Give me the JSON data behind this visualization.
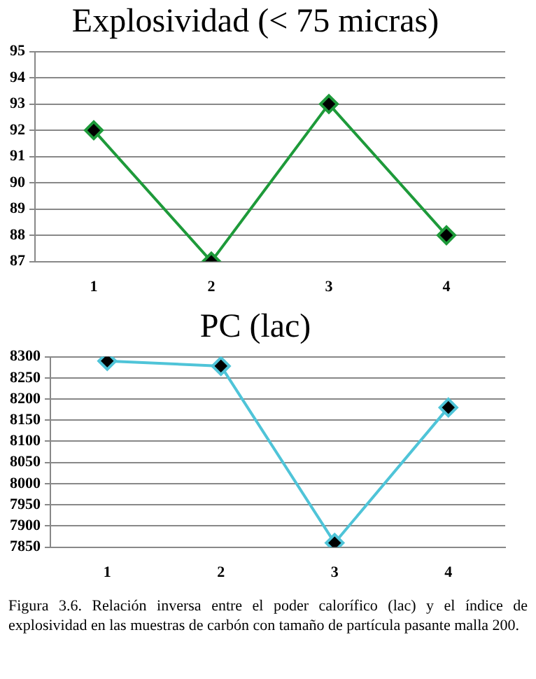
{
  "chart_data": [
    {
      "type": "line",
      "title": "Explosividad (< 75 micras)",
      "categories": [
        "1",
        "2",
        "3",
        "4"
      ],
      "series": [
        {
          "color": "#1e9a3a",
          "values": [
            92,
            87,
            93,
            88
          ]
        }
      ],
      "ylim": [
        87,
        95
      ],
      "yticks": [
        87,
        88,
        89,
        90,
        91,
        92,
        93,
        94,
        95
      ],
      "grid": "y",
      "legend": false,
      "marker": "diamond",
      "line_style": "solid"
    },
    {
      "type": "line",
      "title": "PC (lac)",
      "categories": [
        "1",
        "2",
        "3",
        "4"
      ],
      "series": [
        {
          "color": "#4fc4d8",
          "values": [
            8290,
            8278,
            7860,
            8180
          ]
        }
      ],
      "ylim": [
        7850,
        8300
      ],
      "yticks": [
        7850,
        7900,
        7950,
        8000,
        8050,
        8100,
        8150,
        8200,
        8250,
        8300
      ],
      "grid": "y",
      "legend": false,
      "marker": "diamond",
      "line_style": "solid",
      "annotations": [
        "Figura 3.6.  Relación inversa entre el poder calorífico (lac) y el índice de explosividad en las muestras de carbón con tamaño de partícula pasante malla 200."
      ]
    }
  ]
}
